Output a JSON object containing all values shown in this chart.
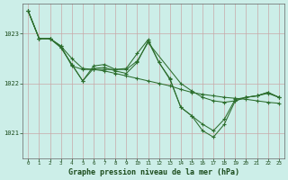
{
  "title": "Graphe pression niveau de la mer (hPa)",
  "bg_color": "#cceee8",
  "grid_color": "#c8a8a8",
  "line_color": "#2d6e2d",
  "xlim": [
    -0.5,
    23.5
  ],
  "ylim": [
    1020.5,
    1023.6
  ],
  "yticks": [
    1021,
    1022,
    1023
  ],
  "xticks": [
    0,
    1,
    2,
    3,
    4,
    5,
    6,
    7,
    8,
    9,
    10,
    11,
    12,
    13,
    14,
    15,
    16,
    17,
    18,
    19,
    20,
    21,
    22,
    23
  ],
  "lines": [
    {
      "x": [
        0,
        1,
        2,
        3,
        4,
        5,
        6,
        7,
        8,
        9,
        10,
        11,
        12,
        13,
        14,
        15,
        16,
        17,
        18,
        19,
        20,
        21,
        22,
        23
      ],
      "y": [
        1023.45,
        1022.9,
        1022.9,
        1022.75,
        1022.5,
        1022.3,
        1022.28,
        1022.25,
        1022.2,
        1022.15,
        1022.1,
        1022.05,
        1022.0,
        1021.95,
        1021.88,
        1021.82,
        1021.78,
        1021.75,
        1021.72,
        1021.7,
        1021.68,
        1021.65,
        1021.62,
        1021.6
      ]
    },
    {
      "x": [
        0,
        1,
        2,
        3,
        4,
        5,
        6,
        7,
        8,
        9,
        10,
        11,
        14,
        15,
        16,
        17,
        18,
        19,
        20,
        21,
        22,
        23
      ],
      "y": [
        1023.45,
        1022.9,
        1022.9,
        1022.75,
        1022.35,
        1022.28,
        1022.28,
        1022.28,
        1022.28,
        1022.28,
        1022.45,
        1022.82,
        1022.0,
        1021.85,
        1021.72,
        1021.65,
        1021.62,
        1021.65,
        1021.72,
        1021.75,
        1021.8,
        1021.72
      ]
    },
    {
      "x": [
        0,
        1,
        2,
        3,
        4,
        5,
        6,
        7,
        8,
        9,
        10,
        11,
        12,
        13,
        14,
        15,
        16,
        17,
        18,
        19,
        20,
        21,
        22,
        23
      ],
      "y": [
        1023.45,
        1022.9,
        1022.9,
        1022.72,
        1022.38,
        1022.05,
        1022.3,
        1022.32,
        1022.25,
        1022.2,
        1022.42,
        1022.85,
        1022.42,
        1022.08,
        1021.52,
        1021.35,
        1021.05,
        1020.92,
        1021.18,
        1021.65,
        1021.72,
        1021.75,
        1021.82,
        1021.72
      ]
    },
    {
      "x": [
        0,
        1,
        2,
        3,
        4,
        5,
        6,
        7,
        8,
        9,
        10,
        11,
        12,
        13,
        14,
        15,
        16,
        17,
        18,
        19,
        20,
        21,
        22,
        23
      ],
      "y": [
        1023.45,
        1022.9,
        1022.9,
        1022.72,
        1022.38,
        1022.05,
        1022.35,
        1022.38,
        1022.28,
        1022.3,
        1022.6,
        1022.88,
        1022.42,
        1022.1,
        1021.52,
        1021.35,
        1021.18,
        1021.05,
        1021.28,
        1021.68,
        1021.72,
        1021.75,
        1021.82,
        1021.72
      ]
    }
  ]
}
